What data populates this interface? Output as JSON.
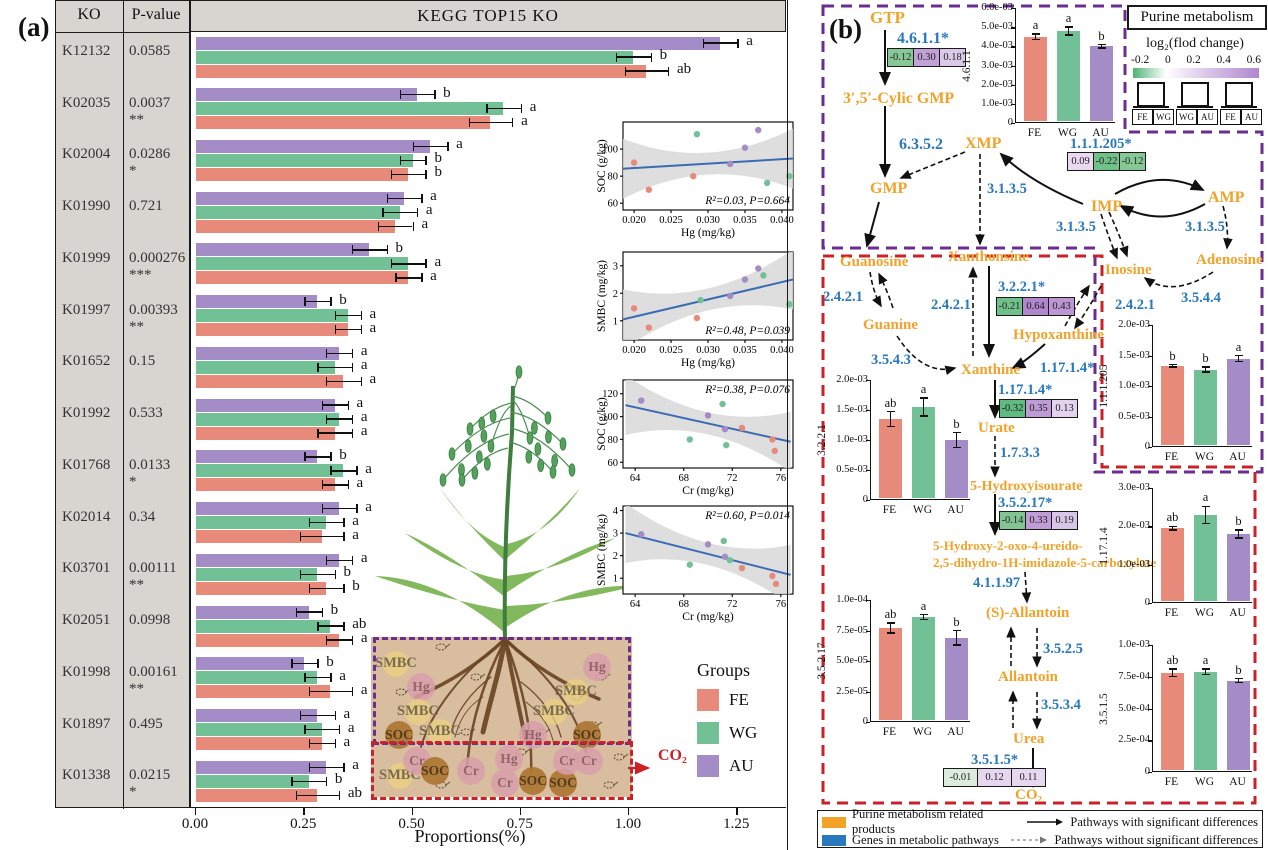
{
  "figure": {
    "panel_a_label": "(a)",
    "panel_b_label": "(b)"
  },
  "colors": {
    "fe": "#e78a7a",
    "wg": "#72c095",
    "au": "#a48cc6",
    "orange": "#f2a229",
    "blue": "#2878be",
    "purple_dash": "#6b2d90",
    "red_dash": "#cb2128",
    "table_bg": "#d8d4d0",
    "soil_bg": "#d8bd9e",
    "trend_line": "#3b6bb5",
    "band_gray": "#d8d8d8",
    "root_brown": "#6a4526",
    "soc_circle": "#ad7733",
    "metal_circle": "#d9a0ab",
    "smbc_circle": "#ecd27f",
    "legend_product": "#f2a229",
    "legend_gene": "#2878be"
  },
  "groups": {
    "title": "Groups",
    "items": [
      {
        "label": "FE"
      },
      {
        "label": "WG"
      },
      {
        "label": "AU"
      }
    ]
  },
  "panel_a": {
    "table": {
      "headers": [
        "KO",
        "P-value"
      ],
      "rows": [
        {
          "ko": "K12132",
          "p": "0.0585",
          "stars": ""
        },
        {
          "ko": "K02035",
          "p": "0.0037",
          "stars": "**"
        },
        {
          "ko": "K02004",
          "p": "0.0286",
          "stars": "*"
        },
        {
          "ko": "K01990",
          "p": "0.721",
          "stars": ""
        },
        {
          "ko": "K01999",
          "p": "0.000276",
          "stars": "***"
        },
        {
          "ko": "K01997",
          "p": "0.00393",
          "stars": "**"
        },
        {
          "ko": "K01652",
          "p": "0.15",
          "stars": ""
        },
        {
          "ko": "K01992",
          "p": "0.533",
          "stars": ""
        },
        {
          "ko": "K01768",
          "p": "0.0133",
          "stars": "*"
        },
        {
          "ko": "K02014",
          "p": "0.34",
          "stars": ""
        },
        {
          "ko": "K03701",
          "p": "0.00111",
          "stars": "**"
        },
        {
          "ko": "K02051",
          "p": "0.0998",
          "stars": ""
        },
        {
          "ko": "K01998",
          "p": "0.00161",
          "stars": "**"
        },
        {
          "ko": "K01897",
          "p": "0.495",
          "stars": ""
        },
        {
          "ko": "K01338",
          "p": "0.0215",
          "stars": "*"
        }
      ]
    },
    "title": "KEGG  TOP15  KO",
    "xlabel": "Proportions(%)",
    "co2_label": "CO₂",
    "soil_items": [
      {
        "label": "SMBC",
        "kind": "smbc"
      },
      {
        "label": "Hg",
        "kind": "metal"
      },
      {
        "label": "SMBC",
        "kind": "smbc"
      },
      {
        "label": "SOC",
        "kind": "soc"
      },
      {
        "label": "SMBC",
        "kind": "smbc"
      },
      {
        "label": "Hg",
        "kind": "metal"
      },
      {
        "label": "SMBC",
        "kind": "smbc"
      },
      {
        "label": "SMBC",
        "kind": "smbc"
      },
      {
        "label": "Hg",
        "kind": "metal"
      },
      {
        "label": "SOC",
        "kind": "soc"
      },
      {
        "label": "SMBC",
        "kind": "smbc"
      },
      {
        "label": "Cr",
        "kind": "metal"
      },
      {
        "label": "SOC",
        "kind": "soc"
      },
      {
        "label": "Cr",
        "kind": "metal"
      },
      {
        "label": "Hg",
        "kind": "metal"
      },
      {
        "label": "Cr",
        "kind": "metal"
      },
      {
        "label": "SOC",
        "kind": "soc"
      },
      {
        "label": "SOC",
        "kind": "soc"
      },
      {
        "label": "Cr",
        "kind": "metal"
      },
      {
        "label": "Cr",
        "kind": "metal"
      }
    ]
  },
  "panel_b": {
    "metabolites": {
      "gtp": "GTP",
      "cgmp": "3′,5′-Cylic GMP",
      "gmp": "GMP",
      "xmp": "XMP",
      "imp": "IMP",
      "amp": "AMP",
      "guanosine": "Guanosine",
      "xanthonsine": "Xanthonsine",
      "inosine": "Inosine",
      "adenosine": "Adenosine",
      "guanine": "Guanine",
      "hypoxanthine": "Hypoxanthine",
      "xanthine": "Xanthine",
      "urate": "Urate",
      "hiu": "5-Hydroxyisourate",
      "ureido1": "5-Hydroxy-2-oxo-4-ureido-",
      "ureido2": "2,5-dihydro-1H-imidazole-5-carboxylate",
      "s_allantoin": "(S)-Allantoin",
      "allantoin": "Allantoin",
      "urea": "Urea",
      "co2": "CO₂"
    },
    "enzymes": {
      "e4611": "4.6.1.1*",
      "e6352": "6.3.5.2",
      "e3135": "3.1.3.5",
      "e111205": "1.1.1.205*",
      "e2421": "2.4.2.1",
      "e3221": "3.2.2.1*",
      "e3543": "3.5.4.3",
      "e3544": "3.5.4.4",
      "e11714": "1.17.1.4*",
      "e1733": "1.7.3.3",
      "e35217": "3.5.2.17*",
      "e41197": "4.1.1.97",
      "e3525": "3.5.2.5",
      "e3534": "3.5.3.4",
      "e3515": "3.5.1.5*"
    },
    "heatmaps": [
      {
        "enzyme": "4.6.1.1*",
        "cells": [
          {
            "v": "-0.12",
            "c": "#86c795"
          },
          {
            "v": "0.30",
            "c": "#c2a0d8"
          },
          {
            "v": "0.18",
            "c": "#dcc9e9"
          }
        ]
      },
      {
        "enzyme": "1.1.1.205*",
        "cells": [
          {
            "v": "0.09",
            "c": "#ead9f0"
          },
          {
            "v": "-0.22",
            "c": "#6fc089"
          },
          {
            "v": "-0.12",
            "c": "#86c795"
          }
        ]
      },
      {
        "enzyme": "3.2.2.1*",
        "cells": [
          {
            "v": "-0.21",
            "c": "#70c08a"
          },
          {
            "v": "0.64",
            "c": "#b086cc"
          },
          {
            "v": "0.43",
            "c": "#bd97d4"
          }
        ]
      },
      {
        "enzyme": "1.17.1.4*",
        "cells": [
          {
            "v": "-0.32",
            "c": "#5fbb80"
          },
          {
            "v": "0.35",
            "c": "#bf9bd6"
          },
          {
            "v": "0.13",
            "c": "#e3d3ee"
          }
        ]
      },
      {
        "enzyme": "3.5.2.17*",
        "cells": [
          {
            "v": "-0.14",
            "c": "#82c593"
          },
          {
            "v": "0.33",
            "c": "#c09dd7"
          },
          {
            "v": "0.19",
            "c": "#d9c5e8"
          }
        ]
      },
      {
        "enzyme": "3.5.1.5*",
        "cells": [
          {
            "v": "-0.01",
            "c": "#dcecdc"
          },
          {
            "v": "0.12",
            "c": "#e6d6ef"
          },
          {
            "v": "0.11",
            "c": "#e7d8f0"
          }
        ]
      }
    ],
    "legend": {
      "title": "Purine metabolism",
      "scale_label": "log₂(flod change)",
      "scale_ticks": [
        "-0.2",
        "0",
        "0.2",
        "0.4",
        "0.6"
      ],
      "pairs": [
        [
          "FE",
          "WG"
        ],
        [
          "WG",
          "AU"
        ],
        [
          "FE",
          "AU"
        ]
      ]
    },
    "bottom_legend": {
      "product_label": "Purine metabolism related products",
      "gene_label": "Genes in metabolic pathways",
      "solid_label": "Pathways with significant differences",
      "dashed_label": "Pathways without significant differences"
    }
  },
  "chart_data": [
    {
      "id": "kegg_top15",
      "type": "bar",
      "orientation": "horizontal",
      "title": "KEGG  TOP15  KO",
      "xlabel": "Proportions(%)",
      "xlim": [
        0,
        1.35
      ],
      "xticks": [
        "0.00",
        "0.25",
        "0.50",
        "0.75",
        "1.00",
        "1.25"
      ],
      "categories": [
        "K12132",
        "K02035",
        "K02004",
        "K01990",
        "K01999",
        "K01997",
        "K01652",
        "K01992",
        "K01768",
        "K02014",
        "K03701",
        "K02051",
        "K01998",
        "K01897",
        "K01338"
      ],
      "series": [
        {
          "name": "FE",
          "values": [
            1.04,
            0.68,
            0.49,
            0.46,
            0.49,
            0.35,
            0.34,
            0.32,
            0.32,
            0.29,
            0.3,
            0.33,
            0.31,
            0.29,
            0.28
          ],
          "errors": [
            0.05,
            0.05,
            0.04,
            0.04,
            0.03,
            0.03,
            0.04,
            0.04,
            0.03,
            0.05,
            0.04,
            0.03,
            0.05,
            0.03,
            0.05
          ],
          "letters": [
            "ab",
            "a",
            "b",
            "a",
            "a",
            "a",
            "a",
            "a",
            "a",
            "a",
            "b",
            "a",
            "a",
            "a",
            "ab"
          ]
        },
        {
          "name": "WG",
          "values": [
            1.01,
            0.71,
            0.5,
            0.47,
            0.49,
            0.35,
            0.32,
            0.33,
            0.34,
            0.3,
            0.28,
            0.31,
            0.28,
            0.29,
            0.26
          ],
          "errors": [
            0.04,
            0.04,
            0.03,
            0.04,
            0.04,
            0.03,
            0.04,
            0.03,
            0.03,
            0.04,
            0.04,
            0.03,
            0.03,
            0.04,
            0.04
          ],
          "letters": [
            "b",
            "a",
            "b",
            "a",
            "a",
            "a",
            "a",
            "a",
            "a",
            "a",
            "b",
            "ab",
            "a",
            "a",
            "b"
          ]
        },
        {
          "name": "AU",
          "values": [
            1.21,
            0.51,
            0.54,
            0.48,
            0.4,
            0.28,
            0.33,
            0.32,
            0.28,
            0.33,
            0.33,
            0.26,
            0.25,
            0.28,
            0.3
          ],
          "errors": [
            0.04,
            0.04,
            0.04,
            0.04,
            0.04,
            0.03,
            0.03,
            0.03,
            0.03,
            0.04,
            0.03,
            0.03,
            0.03,
            0.04,
            0.04
          ],
          "letters": [
            "a",
            "b",
            "a",
            "a",
            "b",
            "b",
            "a",
            "a",
            "b",
            "a",
            "a",
            "b",
            "b",
            "a",
            "a"
          ]
        }
      ]
    },
    {
      "id": "soc_hg",
      "type": "scatter",
      "ylabel": "SOC (g/kg)",
      "xlabel": "Hg (mg/kg)",
      "xlim": [
        0.0185,
        0.0415
      ],
      "ylim": [
        55,
        120
      ],
      "xticks": [
        0.02,
        0.025,
        0.03,
        0.035,
        0.04
      ],
      "xtick_labels": [
        "0.020",
        "0.025",
        "0.030",
        "0.035",
        "0.040"
      ],
      "yticks": [
        60,
        80,
        100
      ],
      "annotation": "R²=0.03, P=0.664",
      "annotation_pos": "br",
      "trend": {
        "x": [
          0.0185,
          0.0415
        ],
        "y": [
          85.5,
          93
        ]
      },
      "series": [
        {
          "name": "FE",
          "points": [
            [
              0.02,
              90
            ],
            [
              0.022,
              70
            ],
            [
              0.028,
              80
            ]
          ]
        },
        {
          "name": "WG",
          "points": [
            [
              0.0285,
              111
            ],
            [
              0.038,
              75
            ],
            [
              0.041,
              80
            ]
          ]
        },
        {
          "name": "AU",
          "points": [
            [
              0.033,
              89
            ],
            [
              0.035,
              101
            ],
            [
              0.0368,
              114
            ]
          ]
        }
      ]
    },
    {
      "id": "smbc_hg",
      "type": "scatter",
      "ylabel": "SMBC (mg/kg)",
      "xlabel": "Hg (mg/kg)",
      "xlim": [
        0.0185,
        0.0415
      ],
      "ylim": [
        0.3,
        3.5
      ],
      "xticks": [
        0.02,
        0.025,
        0.03,
        0.035,
        0.04
      ],
      "xtick_labels": [
        "0.020",
        "0.025",
        "0.030",
        "0.035",
        "0.040"
      ],
      "yticks": [
        1,
        2,
        3
      ],
      "annotation": "R²=0.48, P=0.039",
      "annotation_pos": "br",
      "trend": {
        "x": [
          0.0185,
          0.0415
        ],
        "y": [
          1.05,
          2.5
        ]
      },
      "series": [
        {
          "name": "FE",
          "points": [
            [
              0.02,
              1.45
            ],
            [
              0.022,
              0.75
            ],
            [
              0.0285,
              1.1
            ]
          ]
        },
        {
          "name": "WG",
          "points": [
            [
              0.029,
              1.75
            ],
            [
              0.0375,
              2.65
            ],
            [
              0.041,
              1.6
            ]
          ]
        },
        {
          "name": "AU",
          "points": [
            [
              0.033,
              1.9
            ],
            [
              0.035,
              2.5
            ],
            [
              0.0368,
              2.9
            ]
          ]
        }
      ]
    },
    {
      "id": "soc_cr",
      "type": "scatter",
      "ylabel": "SOC (g/kg)",
      "xlabel": "Cr (mg/kg)",
      "xlim": [
        63,
        77
      ],
      "ylim": [
        55,
        132
      ],
      "xticks": [
        64,
        68,
        72,
        76
      ],
      "xtick_labels": [
        "64",
        "68",
        "72",
        "76"
      ],
      "yticks": [
        60,
        80,
        100,
        120
      ],
      "annotation": "R²=0.38, P=0.076",
      "annotation_pos": "tr",
      "trend": {
        "x": [
          63.2,
          76.8
        ],
        "y": [
          110,
          78
        ]
      },
      "series": [
        {
          "name": "AU",
          "points": [
            [
              64.5,
              114
            ],
            [
              70,
              101
            ],
            [
              71.4,
              89
            ]
          ]
        },
        {
          "name": "WG",
          "points": [
            [
              68.5,
              80
            ],
            [
              71.2,
              111
            ],
            [
              71.5,
              75
            ]
          ]
        },
        {
          "name": "FE",
          "points": [
            [
              72.8,
              90
            ],
            [
              75.3,
              80
            ],
            [
              75.5,
              70
            ]
          ]
        }
      ]
    },
    {
      "id": "smbc_cr",
      "type": "scatter",
      "ylabel": "SMBC (mg/kg)",
      "xlabel": "Cr (mg/kg)",
      "xlim": [
        63,
        77
      ],
      "ylim": [
        0.3,
        4.2
      ],
      "xticks": [
        64,
        68,
        72,
        76
      ],
      "xtick_labels": [
        "64",
        "68",
        "72",
        "76"
      ],
      "yticks": [
        1,
        2,
        3,
        4
      ],
      "annotation": "R²=0.60, P=0.014",
      "annotation_pos": "tr",
      "trend": {
        "x": [
          63.2,
          76.8
        ],
        "y": [
          3.0,
          1.15
        ]
      },
      "series": [
        {
          "name": "AU",
          "points": [
            [
              64.5,
              2.95
            ],
            [
              70,
              2.5
            ],
            [
              71.4,
              1.95
            ]
          ]
        },
        {
          "name": "WG",
          "points": [
            [
              68.5,
              1.6
            ],
            [
              71.3,
              2.65
            ],
            [
              71.8,
              1.8
            ]
          ]
        },
        {
          "name": "FE",
          "points": [
            [
              72.8,
              1.45
            ],
            [
              75.3,
              1.1
            ],
            [
              75.6,
              0.75
            ]
          ]
        }
      ]
    },
    {
      "id": "b1",
      "type": "bar",
      "ylabel": "4.6.1.1",
      "categories": [
        "FE",
        "WG",
        "AU"
      ],
      "values": [
        0.0045,
        0.0048,
        0.004
      ],
      "errors": [
        0.00015,
        0.0002,
        8e-05
      ],
      "letters": [
        "a",
        "a",
        "b"
      ],
      "yticks": [
        "6.0e-03",
        "5.0e-03",
        "4.0e-03",
        "3.0e-03",
        "2.0e-03",
        "1.0e-03",
        "0"
      ]
    },
    {
      "id": "b2",
      "type": "bar",
      "ylabel": "3.2.2.1",
      "categories": [
        "FE",
        "WG",
        "AU"
      ],
      "values": [
        0.00135,
        0.00155,
        0.001
      ],
      "errors": [
        0.00012,
        0.00015,
        0.00012
      ],
      "letters": [
        "ab",
        "a",
        "b"
      ],
      "yticks": [
        "2.0e-03",
        "1.5e-03",
        "1.0e-03",
        "0.5e-03",
        "0"
      ]
    },
    {
      "id": "b3",
      "type": "bar",
      "ylabel": "1.1.1.205",
      "categories": [
        "FE",
        "WG",
        "AU"
      ],
      "values": [
        0.00133,
        0.00127,
        0.00145
      ],
      "errors": [
        2e-05,
        4e-05,
        5e-05
      ],
      "letters": [
        "b",
        "b",
        "a"
      ],
      "yticks": [
        "2.0e-03",
        "1.5e-03",
        "1.0e-03",
        "0.5e-03",
        "0"
      ]
    },
    {
      "id": "b4",
      "type": "bar",
      "ylabel": "1.17.1.4",
      "categories": [
        "FE",
        "WG",
        "AU"
      ],
      "values": [
        0.00195,
        0.0023,
        0.0018
      ],
      "errors": [
        5e-05,
        0.00022,
        0.0001
      ],
      "letters": [
        "ab",
        "a",
        "b"
      ],
      "yticks": [
        "3.0e-03",
        "2.0e-03",
        "1.0e-03",
        "0"
      ]
    },
    {
      "id": "b5",
      "type": "bar",
      "ylabel": "3.5.2.17",
      "categories": [
        "FE",
        "WG",
        "AU"
      ],
      "values": [
        7.7e-05,
        8.6e-05,
        6.9e-05
      ],
      "errors": [
        4e-06,
        2e-06,
        6e-06
      ],
      "letters": [
        "ab",
        "a",
        "b"
      ],
      "yticks": [
        "1.0e-04",
        "7.5e-05",
        "5.0e-05",
        "2.5e-05",
        "0"
      ]
    },
    {
      "id": "b6",
      "type": "bar",
      "ylabel": "3.5.1.5",
      "categories": [
        "FE",
        "WG",
        "AU"
      ],
      "values": [
        0.00078,
        0.00079,
        0.00072
      ],
      "errors": [
        3e-05,
        2e-05,
        1.5e-05
      ],
      "letters": [
        "ab",
        "a",
        "b"
      ],
      "yticks": [
        "1.0e-03",
        "7.5e-04",
        "5.0e-04",
        "2.5e-04",
        "0"
      ]
    }
  ]
}
